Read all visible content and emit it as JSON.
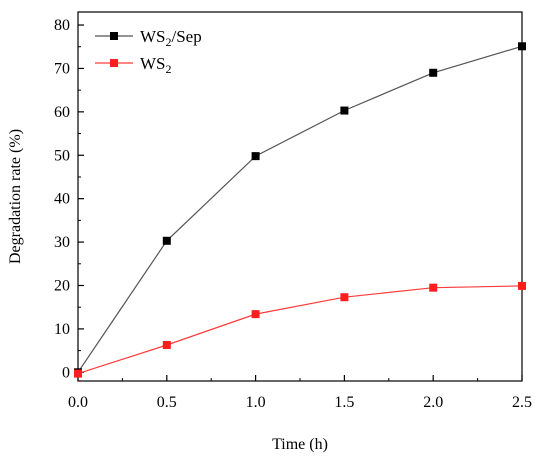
{
  "chart_data": {
    "type": "line",
    "xlabel": "Time (h)",
    "ylabel": "Degradation rate (%)",
    "xlim": [
      0.0,
      2.5
    ],
    "ylim": [
      -2,
      83
    ],
    "x_ticks": [
      0.0,
      0.5,
      1.0,
      1.5,
      2.0,
      2.5
    ],
    "x_tick_labels": [
      "0.0",
      "0.5",
      "1.0",
      "1.5",
      "2.0",
      "2.5"
    ],
    "y_ticks": [
      0,
      10,
      20,
      30,
      40,
      50,
      60,
      70,
      80
    ],
    "y_tick_labels": [
      "0",
      "10",
      "20",
      "30",
      "40",
      "50",
      "60",
      "70",
      "80"
    ],
    "grid": false,
    "legend_position": "top-left",
    "x": [
      0.0,
      0.5,
      1.0,
      1.5,
      2.0,
      2.5
    ],
    "series": [
      {
        "name": "WS2/Sep",
        "legend_base": "WS",
        "legend_sub": "2",
        "legend_suffix": "/Sep",
        "values": [
          0,
          30.3,
          49.8,
          60.3,
          69.0,
          75.1
        ],
        "line_color": "#555555",
        "marker_color": "#000000",
        "marker": "square"
      },
      {
        "name": "WS2",
        "legend_base": "WS",
        "legend_sub": "2",
        "legend_suffix": "",
        "values": [
          -0.3,
          6.3,
          13.4,
          17.3,
          19.5,
          19.9
        ],
        "line_color": "#ff3b3b",
        "marker_color": "#ff1e1e",
        "marker": "square"
      }
    ]
  }
}
